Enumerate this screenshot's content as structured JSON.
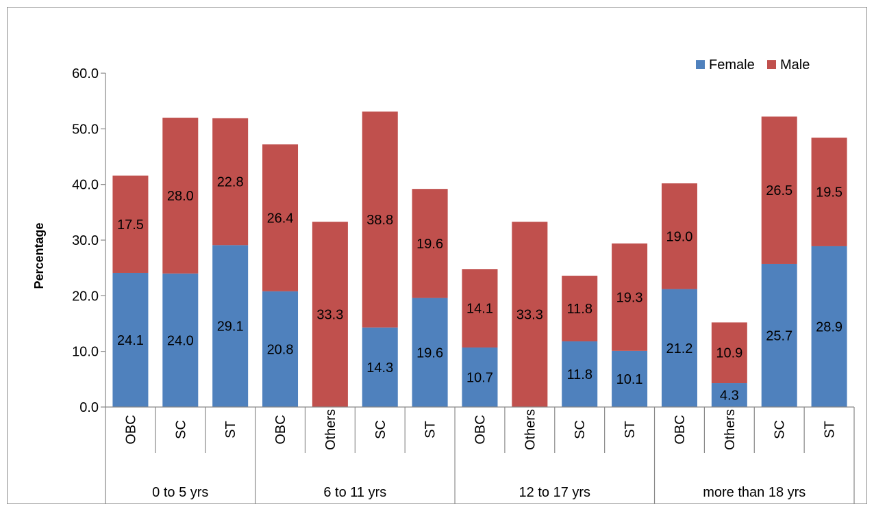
{
  "chart_data": {
    "type": "bar",
    "stacked": true,
    "ylabel": "Percentage",
    "ylim": [
      0,
      60
    ],
    "yticks": [
      "0.0",
      "10.0",
      "20.0",
      "30.0",
      "40.0",
      "50.0",
      "60.0"
    ],
    "legend_position": "top-right",
    "groups": [
      {
        "name": "0 to 5 yrs",
        "categories": [
          "OBC",
          "SC",
          "ST"
        ]
      },
      {
        "name": "6 to 11 yrs",
        "categories": [
          "OBC",
          "Others",
          "SC",
          "ST"
        ]
      },
      {
        "name": "12 to 17 yrs",
        "categories": [
          "OBC",
          "Others",
          "SC",
          "ST"
        ]
      },
      {
        "name": "more than 18 yrs",
        "categories": [
          "OBC",
          "Others",
          "SC",
          "ST"
        ]
      }
    ],
    "categories": [
      "OBC",
      "SC",
      "ST",
      "OBC",
      "Others",
      "SC",
      "ST",
      "OBC",
      "Others",
      "SC",
      "ST",
      "OBC",
      "Others",
      "SC",
      "ST"
    ],
    "series": [
      {
        "name": "Female",
        "color": "#4f81bd",
        "values": [
          24.1,
          24.0,
          29.1,
          20.8,
          0,
          14.3,
          19.6,
          10.7,
          0,
          11.8,
          10.1,
          21.2,
          4.3,
          25.7,
          28.9
        ],
        "labels": [
          "24.1",
          "24.0",
          "29.1",
          "20.8",
          "",
          "14.3",
          "19.6",
          "10.7",
          "",
          "11.8",
          "10.1",
          "21.2",
          "4.3",
          "25.7",
          "28.9"
        ]
      },
      {
        "name": "Male",
        "color": "#c0504d",
        "values": [
          17.5,
          28.0,
          22.8,
          26.4,
          33.3,
          38.8,
          19.6,
          14.1,
          33.3,
          11.8,
          19.3,
          19.0,
          10.9,
          26.5,
          19.5
        ],
        "labels": [
          "17.5",
          "28.0",
          "22.8",
          "26.4",
          "33.3",
          "38.8",
          "19.6",
          "14.1",
          "33.3",
          "11.8",
          "19.3",
          "19.0",
          "10.9",
          "26.5",
          "19.5"
        ]
      }
    ]
  }
}
